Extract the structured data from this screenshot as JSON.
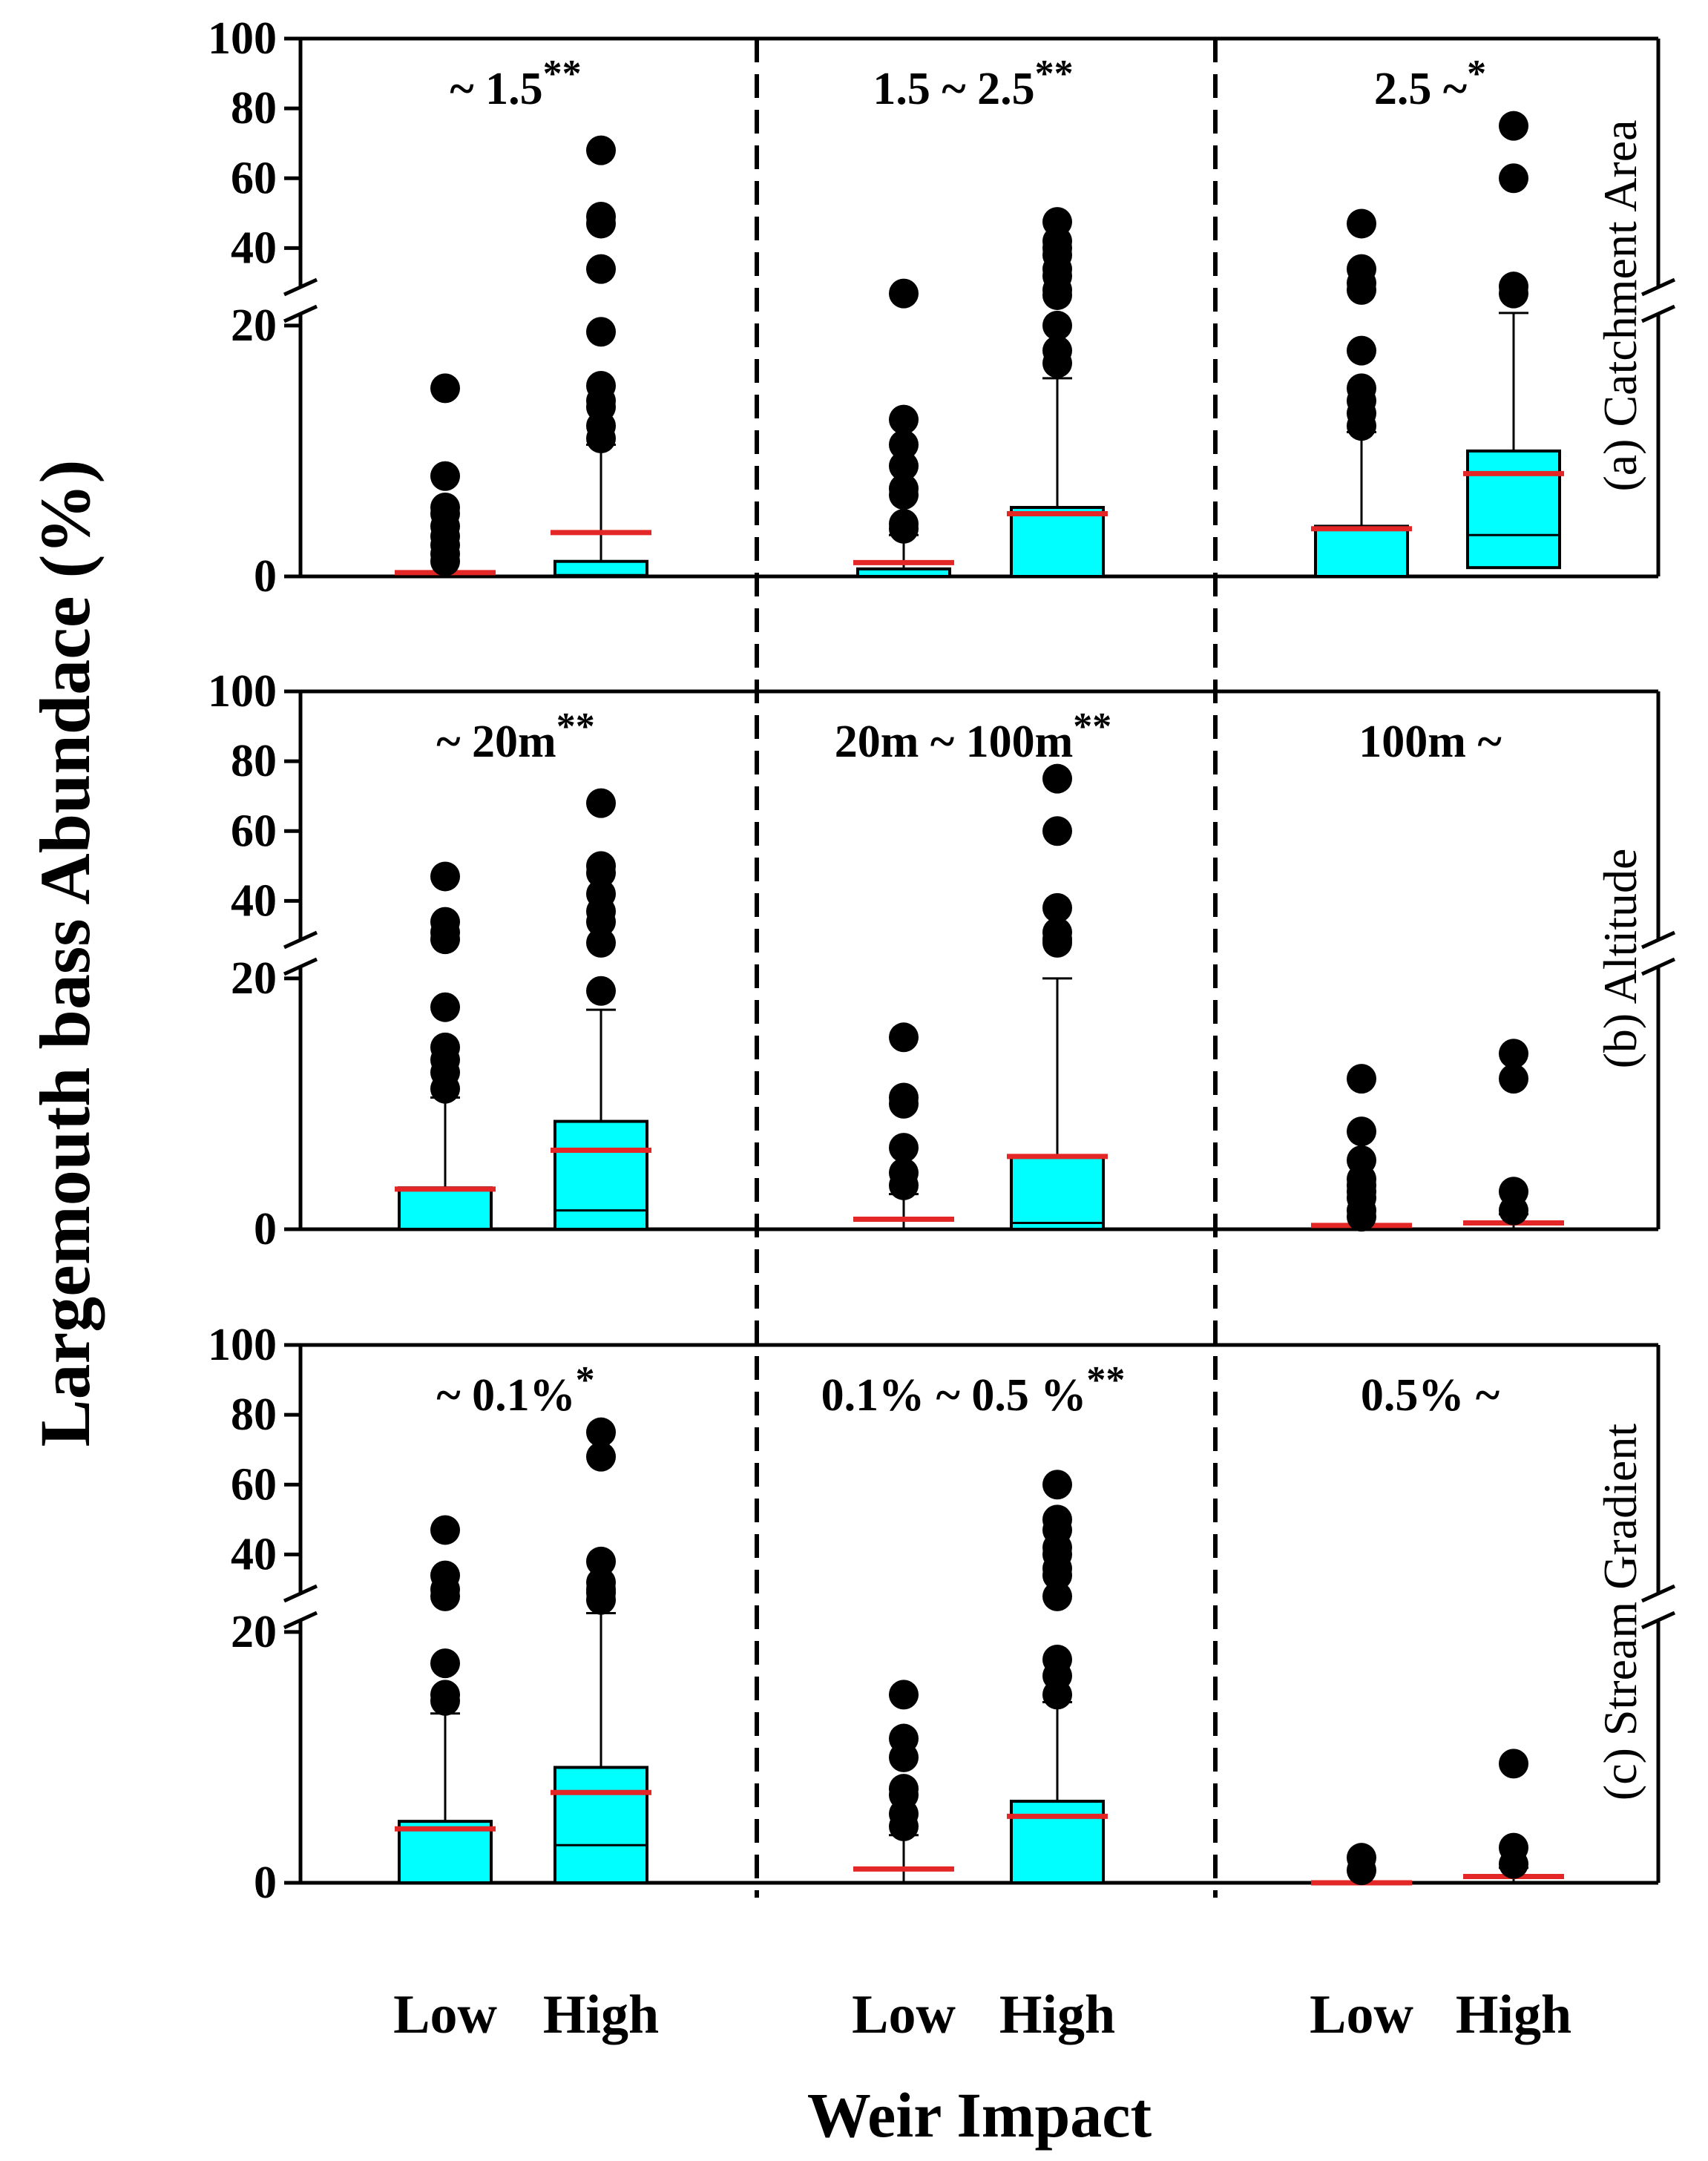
{
  "chart_data": {
    "type": "box",
    "xlabel": "Weir Impact",
    "ylabel": "Largemouth bass Abundace (%)",
    "categories": [
      "Low",
      "High"
    ],
    "y_ticks_lower": [
      "0",
      "20"
    ],
    "y_ticks_upper": [
      "40",
      "60",
      "80",
      "100"
    ],
    "ylim_lower": [
      0,
      22
    ],
    "ylim_upper": [
      25,
      100
    ],
    "axis_break": true,
    "rows": [
      {
        "label": "(a) Catchment Area",
        "groups": [
          {
            "label": "~ 1.5",
            "significance": "**",
            "boxes": [
              {
                "category": "Low",
                "q1": 0,
                "median": 0,
                "q3": 0,
                "mean": 0.3,
                "whisker_low": 0,
                "whisker_high": 0.2,
                "outliers": [
                  1.2,
                  1.8,
                  2.5,
                  3.2,
                  4,
                  5,
                  5.5,
                  8,
                  15
                ]
              },
              {
                "category": "High",
                "q1": 0,
                "median": 0.1,
                "q3": 1.2,
                "mean": 3.5,
                "whisker_low": 0,
                "whisker_high": 10.5,
                "outliers": [
                  11,
                  12,
                  13.5,
                  14,
                  15.2,
                  19.5,
                  34,
                  47,
                  49,
                  68
                ]
              }
            ]
          },
          {
            "label": "1.5 ~ 2.5",
            "significance": "**",
            "boxes": [
              {
                "category": "Low",
                "q1": 0,
                "median": 0,
                "q3": 0.6,
                "mean": 1.1,
                "whisker_low": 0,
                "whisker_high": 3.3,
                "outliers": [
                  3.8,
                  4.2,
                  6.5,
                  7,
                  8.8,
                  10.5,
                  12.5,
                  27
                ]
              },
              {
                "category": "High",
                "q1": 0,
                "median": 0,
                "q3": 5.5,
                "mean": 5,
                "whisker_low": 0,
                "whisker_high": 15.8,
                "outliers": [
                  17,
                  18,
                  20,
                  26.5,
                  28,
                  32,
                  34,
                  38,
                  40,
                  42,
                  47.5
                ]
              }
            ]
          },
          {
            "label": "2.5 ~",
            "significance": "*",
            "boxes": [
              {
                "category": "Low",
                "q1": 0,
                "median": 0,
                "q3": 4,
                "mean": 3.8,
                "whisker_low": 0,
                "whisker_high": 11.5,
                "outliers": [
                  12,
                  13,
                  14,
                  15,
                  18,
                  28,
                  30,
                  34,
                  47
                ]
              },
              {
                "category": "High",
                "q1": 0.7,
                "median": 3.3,
                "q3": 10,
                "mean": 8.2,
                "whisker_low": 0,
                "whisker_high": 21,
                "outliers": [
                  27,
                  29,
                  60,
                  75
                ]
              }
            ]
          }
        ]
      },
      {
        "label": "(b) Altitude",
        "groups": [
          {
            "label": "~ 20m",
            "significance": "**",
            "boxes": [
              {
                "category": "Low",
                "q1": 0,
                "median": 0,
                "q3": 3.3,
                "mean": 3.2,
                "whisker_low": 0,
                "whisker_high": 10.5,
                "outliers": [
                  11.2,
                  12.5,
                  13.5,
                  14.5,
                  17.7,
                  29,
                  31,
                  34,
                  47
                ]
              },
              {
                "category": "High",
                "q1": 0,
                "median": 1.5,
                "q3": 8.6,
                "mean": 6.3,
                "whisker_low": 0,
                "whisker_high": 17.5,
                "outliers": [
                  19,
                  28,
                  34,
                  37,
                  42,
                  48,
                  50,
                  68
                ]
              }
            ]
          },
          {
            "label": "20m ~ 100m",
            "significance": "**",
            "boxes": [
              {
                "category": "Low",
                "q1": 0,
                "median": 0,
                "q3": 0,
                "mean": 0.8,
                "whisker_low": 0,
                "whisker_high": 2.8,
                "outliers": [
                  3.5,
                  4.5,
                  6.5,
                  10,
                  10.5,
                  15.3
                ]
              },
              {
                "category": "High",
                "q1": 0,
                "median": 0.5,
                "q3": 5.8,
                "mean": 5.8,
                "whisker_low": 0,
                "whisker_high": 20,
                "outliers": [
                  28,
                  29,
                  31,
                  38,
                  60,
                  75
                ]
              }
            ]
          },
          {
            "label": "100m ~",
            "significance": "",
            "boxes": [
              {
                "category": "Low",
                "q1": 0,
                "median": 0,
                "q3": 0,
                "mean": 0.3,
                "whisker_low": 0,
                "whisker_high": 0.3,
                "outliers": [
                  1,
                  1.5,
                  2.5,
                  3,
                  3.5,
                  4,
                  5.5,
                  7.8,
                  12
                ]
              },
              {
                "category": "High",
                "q1": 0,
                "median": 0,
                "q3": 0,
                "mean": 0.5,
                "whisker_low": 0,
                "whisker_high": 1.2,
                "outliers": [
                  1.5,
                  3,
                  12,
                  14
                ]
              }
            ]
          }
        ]
      },
      {
        "label": "(c) Stream Gradient",
        "groups": [
          {
            "label": "~ 0.1%",
            "significance": "*",
            "boxes": [
              {
                "category": "Low",
                "q1": 0,
                "median": 0,
                "q3": 4.9,
                "mean": 4.3,
                "whisker_low": 0,
                "whisker_high": 13.5,
                "outliers": [
                  14.5,
                  15,
                  17.5,
                  28,
                  30,
                  34,
                  47
                ]
              },
              {
                "category": "High",
                "q1": 0,
                "median": 3,
                "q3": 9.2,
                "mean": 7.2,
                "whisker_low": 0,
                "whisker_high": 21.5,
                "outliers": [
                  27,
                  29,
                  30,
                  32,
                  38,
                  68,
                  75
                ]
              }
            ]
          },
          {
            "label": "0.1%  ~ 0.5 %",
            "significance": "**",
            "boxes": [
              {
                "category": "Low",
                "q1": 0,
                "median": 0,
                "q3": 0,
                "mean": 1.1,
                "whisker_low": 0,
                "whisker_high": 3.8,
                "outliers": [
                  4.5,
                  5.5,
                  7,
                  7.5,
                  10,
                  11.5,
                  15
                ]
              },
              {
                "category": "High",
                "q1": 0,
                "median": 0,
                "q3": 6.5,
                "mean": 5.3,
                "whisker_low": 0,
                "whisker_high": 14.4,
                "outliers": [
                  15,
                  16.5,
                  17.8,
                  28,
                  34,
                  36,
                  40,
                  42,
                  47,
                  50,
                  60
                ]
              }
            ]
          },
          {
            "label": "0.5% ~",
            "significance": "",
            "boxes": [
              {
                "category": "Low",
                "q1": 0,
                "median": 0,
                "q3": 0,
                "mean": 0,
                "whisker_low": 0,
                "whisker_high": 0,
                "outliers": [
                  1,
                  2
                ]
              },
              {
                "category": "High",
                "q1": 0,
                "median": 0,
                "q3": 0,
                "mean": 0.5,
                "whisker_low": 0,
                "whisker_high": 1.2,
                "outliers": [
                  1.5,
                  2.8,
                  9.5
                ]
              }
            ]
          }
        ]
      }
    ]
  }
}
